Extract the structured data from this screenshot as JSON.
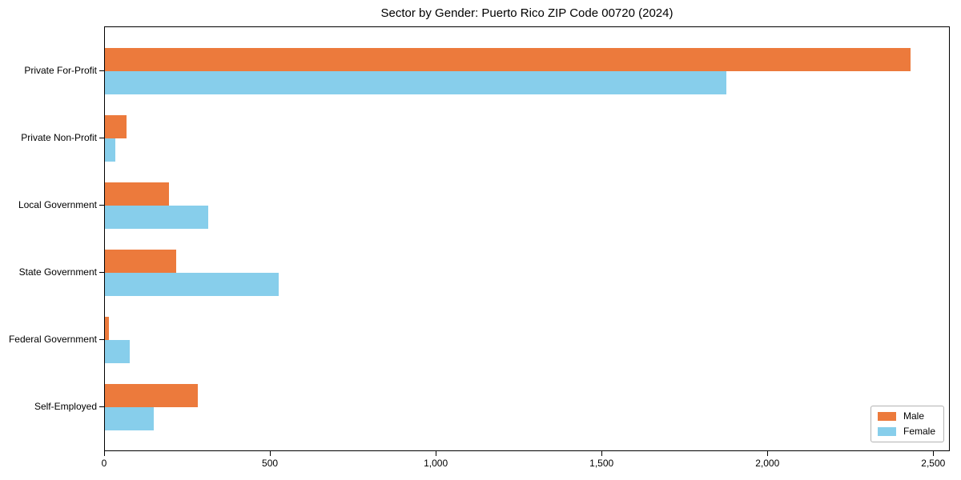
{
  "chart_data": {
    "type": "bar",
    "orientation": "horizontal",
    "title": "Sector by Gender: Puerto Rico ZIP Code 00720 (2024)",
    "categories": [
      "Private For-Profit",
      "Private Non-Profit",
      "Local Government",
      "State Government",
      "Federal Government",
      "Self-Employed"
    ],
    "series": [
      {
        "name": "Male",
        "color": "#EC7A3C",
        "values": [
          2430,
          65,
          193,
          215,
          11,
          280
        ]
      },
      {
        "name": "Female",
        "color": "#87CEEB",
        "values": [
          1875,
          32,
          312,
          524,
          75,
          147
        ]
      }
    ],
    "xlabel": "",
    "ylabel": "",
    "xlim": [
      0,
      2550
    ],
    "xticks": [
      0,
      500,
      1000,
      1500,
      2000,
      2500
    ],
    "xtick_labels": [
      "0",
      "500",
      "1,000",
      "1,500",
      "2,000",
      "2,500"
    ],
    "grid": false,
    "legend_position": "lower right",
    "colors": {
      "axis": "#000000",
      "legend_border": "#b3b3b3",
      "background": "#ffffff"
    }
  }
}
